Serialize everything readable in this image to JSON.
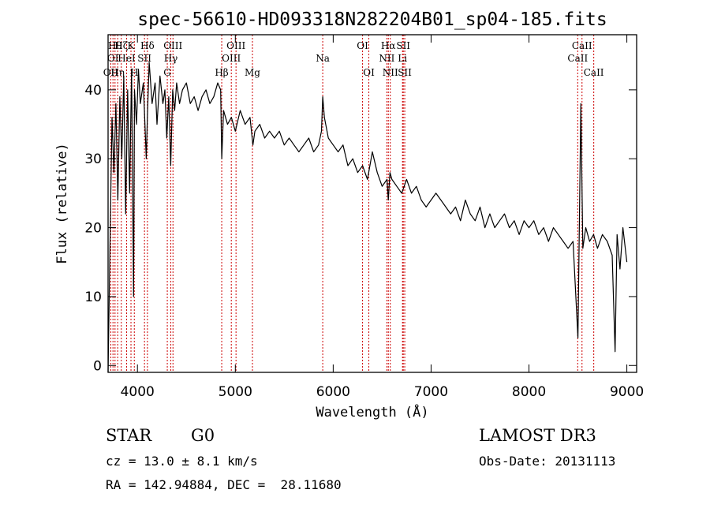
{
  "chart_data": {
    "type": "line",
    "title": "spec-56610-HD093318N282204B01_sp04-185.fits",
    "xlabel": "Wavelength (Å)",
    "ylabel": "Flux (relative)",
    "xlim": [
      3700,
      9100
    ],
    "ylim": [
      -1,
      48
    ],
    "xticks": [
      4000,
      5000,
      6000,
      7000,
      8000,
      9000
    ],
    "yticks": [
      0,
      10,
      20,
      30,
      40
    ],
    "grid": false,
    "series": [
      {
        "color": "#000000",
        "x": [
          3700,
          3720,
          3740,
          3760,
          3780,
          3800,
          3820,
          3840,
          3860,
          3880,
          3900,
          3920,
          3940,
          3960,
          3970,
          3990,
          4010,
          4030,
          4060,
          4090,
          4101,
          4120,
          4150,
          4180,
          4200,
          4230,
          4260,
          4280,
          4300,
          4320,
          4340,
          4360,
          4380,
          4400,
          4430,
          4460,
          4500,
          4540,
          4580,
          4620,
          4660,
          4700,
          4740,
          4780,
          4820,
          4850,
          4861,
          4880,
          4920,
          4960,
          5000,
          5050,
          5100,
          5150,
          5180,
          5200,
          5250,
          5300,
          5350,
          5400,
          5450,
          5500,
          5550,
          5600,
          5650,
          5700,
          5750,
          5800,
          5850,
          5880,
          5893,
          5910,
          5950,
          6000,
          6050,
          6100,
          6150,
          6200,
          6250,
          6300,
          6350,
          6400,
          6450,
          6500,
          6550,
          6563,
          6580,
          6600,
          6650,
          6700,
          6750,
          6800,
          6850,
          6900,
          6950,
          7000,
          7050,
          7100,
          7150,
          7200,
          7250,
          7300,
          7350,
          7400,
          7450,
          7500,
          7550,
          7600,
          7650,
          7700,
          7750,
          7800,
          7850,
          7900,
          7950,
          8000,
          8050,
          8100,
          8150,
          8200,
          8250,
          8300,
          8350,
          8400,
          8450,
          8500,
          8530,
          8550,
          8580,
          8620,
          8660,
          8700,
          8750,
          8800,
          8850,
          8880,
          8900,
          8930,
          8960,
          9000
        ],
        "y": [
          -1,
          18,
          36,
          28,
          38,
          24,
          39,
          30,
          42,
          22,
          40,
          25,
          43,
          10,
          40,
          35,
          43,
          38,
          41,
          30,
          36,
          44,
          38,
          41,
          35,
          42,
          38,
          40,
          33,
          39,
          29,
          40,
          37,
          41,
          38,
          40,
          41,
          38,
          39,
          37,
          39,
          40,
          38,
          39,
          41,
          40,
          30,
          37,
          35,
          36,
          34,
          37,
          35,
          36,
          32,
          34,
          35,
          33,
          34,
          33,
          34,
          32,
          33,
          32,
          31,
          32,
          33,
          31,
          32,
          34,
          39,
          36,
          33,
          32,
          31,
          32,
          29,
          30,
          28,
          29,
          27,
          31,
          28,
          26,
          27,
          24,
          28,
          27,
          26,
          25,
          27,
          25,
          26,
          24,
          23,
          24,
          25,
          24,
          23,
          22,
          23,
          21,
          24,
          22,
          21,
          23,
          20,
          22,
          20,
          21,
          22,
          20,
          21,
          19,
          21,
          20,
          21,
          19,
          20,
          18,
          20,
          19,
          18,
          17,
          18,
          4,
          38,
          17,
          20,
          18,
          19,
          17,
          19,
          18,
          16,
          2,
          19,
          14,
          20,
          15
        ]
      }
    ],
    "line_markers": [
      {
        "wavelength": 3728,
        "labels": [
          {
            "text": "OII",
            "row": 2
          }
        ]
      },
      {
        "wavelength": 3750,
        "labels": [
          {
            "text": "OI",
            "row": 1
          }
        ]
      },
      {
        "wavelength": 3771,
        "labels": [
          {
            "text": "Hθ",
            "row": 0
          }
        ]
      },
      {
        "wavelength": 3798,
        "labels": [
          {
            "text": "Hη",
            "row": 2
          }
        ]
      },
      {
        "wavelength": 3835,
        "labels": [
          {
            "text": "Hζ",
            "row": 0
          }
        ]
      },
      {
        "wavelength": 3889,
        "labels": [
          {
            "text": "HeI",
            "row": 1
          }
        ]
      },
      {
        "wavelength": 3934,
        "labels": [
          {
            "text": "K",
            "row": 0
          }
        ]
      },
      {
        "wavelength": 3968,
        "labels": [
          {
            "text": "H",
            "row": 2
          }
        ]
      },
      {
        "wavelength": 4072,
        "labels": [
          {
            "text": "SII",
            "row": 1
          }
        ]
      },
      {
        "wavelength": 4102,
        "labels": [
          {
            "text": "Hδ",
            "row": 0
          }
        ]
      },
      {
        "wavelength": 4305,
        "labels": [
          {
            "text": "G",
            "row": 2
          }
        ]
      },
      {
        "wavelength": 4341,
        "labels": [
          {
            "text": "Hγ",
            "row": 1
          }
        ]
      },
      {
        "wavelength": 4363,
        "labels": [
          {
            "text": "OIII",
            "row": 0
          }
        ]
      },
      {
        "wavelength": 4861,
        "labels": [
          {
            "text": "Hβ",
            "row": 2
          }
        ]
      },
      {
        "wavelength": 4959,
        "labels": [
          {
            "text": "OIII",
            "row": 1
          }
        ]
      },
      {
        "wavelength": 5007,
        "labels": [
          {
            "text": "OIII",
            "row": 0
          }
        ]
      },
      {
        "wavelength": 5175,
        "labels": [
          {
            "text": "Mg",
            "row": 2
          }
        ]
      },
      {
        "wavelength": 5893,
        "labels": [
          {
            "text": "Na",
            "row": 1
          }
        ]
      },
      {
        "wavelength": 6300,
        "labels": [
          {
            "text": "OI",
            "row": 0
          }
        ]
      },
      {
        "wavelength": 6364,
        "labels": [
          {
            "text": "OI",
            "row": 2
          }
        ]
      },
      {
        "wavelength": 6548,
        "labels": [
          {
            "text": "NII",
            "row": 1
          }
        ]
      },
      {
        "wavelength": 6563,
        "labels": [
          {
            "text": "Hα",
            "row": 0
          }
        ]
      },
      {
        "wavelength": 6583,
        "labels": [
          {
            "text": "NII",
            "row": 2
          }
        ]
      },
      {
        "wavelength": 6708,
        "labels": [
          {
            "text": "Li",
            "row": 1
          }
        ]
      },
      {
        "wavelength": 6716,
        "labels": [
          {
            "text": "SII",
            "row": 0
          }
        ]
      },
      {
        "wavelength": 6731,
        "labels": [
          {
            "text": "SII",
            "row": 2
          }
        ]
      },
      {
        "wavelength": 8498,
        "labels": [
          {
            "text": "CaII",
            "row": 1
          }
        ]
      },
      {
        "wavelength": 8542,
        "labels": [
          {
            "text": "CaII",
            "row": 0
          }
        ]
      },
      {
        "wavelength": 8662,
        "labels": [
          {
            "text": "CaII",
            "row": 2
          }
        ]
      }
    ],
    "marker_color": "#cc0000"
  },
  "info": {
    "object_class": "STAR",
    "subclass": "G0",
    "survey": "LAMOST DR3",
    "redshift": "cz = 13.0 ± 8.1 km/s",
    "obs_date": "Obs-Date: 20131113",
    "coords": "RA = 142.94884, DEC =  28.11680"
  }
}
